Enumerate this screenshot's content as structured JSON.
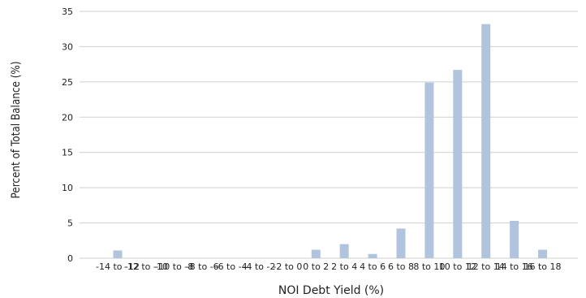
{
  "chart_data": {
    "type": "bar",
    "title": "",
    "xlabel": "NOI Debt Yield (%)",
    "ylabel": "Percent of Total Balance (%)",
    "ylim": [
      0,
      35
    ],
    "yticks": [
      0,
      5,
      10,
      15,
      20,
      25,
      30,
      35
    ],
    "grid": "horizontal",
    "legend": "none",
    "bar_color": "#b0c4de",
    "categories": [
      "-14 to -12",
      "-12 to -10",
      "-10 to -8",
      "-8 to -6",
      "-6 to -4",
      "-4 to -2",
      "-2 to 0",
      "0 to 2",
      "2 to 4",
      "4 to 6",
      "6 to 8",
      "8 to 10",
      "10 to 12",
      "12 to 14",
      "14 to 16",
      "16 to 18"
    ],
    "values": [
      1.1,
      0,
      0,
      0,
      0,
      0,
      0,
      1.2,
      2.0,
      0.6,
      4.2,
      24.9,
      26.7,
      33.2,
      5.3,
      1.2
    ]
  }
}
